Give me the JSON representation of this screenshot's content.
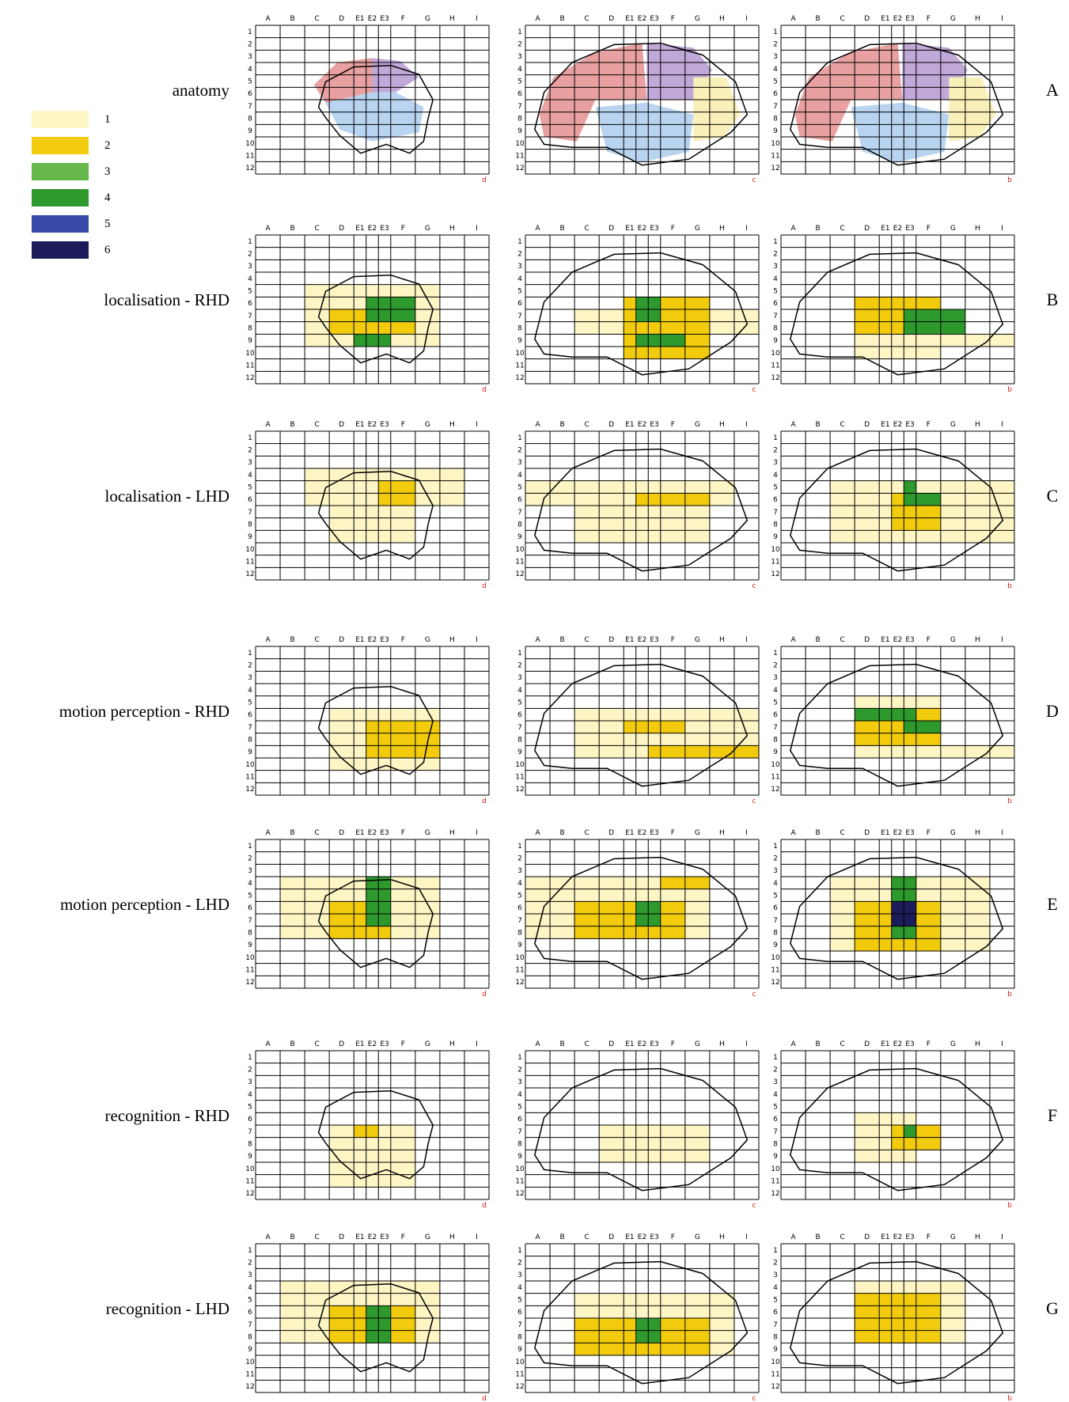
{
  "legend": [
    {
      "label": "1",
      "color": "#fdf5c4"
    },
    {
      "label": "2",
      "color": "#f2cc0c"
    },
    {
      "label": "3",
      "color": "#66b84a"
    },
    {
      "label": "4",
      "color": "#2e9a2e"
    },
    {
      "label": "5",
      "color": "#3a4aa8"
    },
    {
      "label": "6",
      "color": "#1c1c5a"
    }
  ],
  "grid": {
    "columns": [
      "A",
      "B",
      "C",
      "D",
      "E1",
      "E2",
      "E3",
      "F",
      "G",
      "H",
      "I"
    ],
    "rows": [
      "1",
      "2",
      "3",
      "4",
      "5",
      "6",
      "7",
      "8",
      "9",
      "10",
      "11",
      "12"
    ]
  },
  "rows": [
    {
      "label": "anatomy",
      "letter": "A",
      "panels": [
        {
          "corner": "d",
          "cells": []
        },
        {
          "corner": "c",
          "cells": []
        },
        {
          "corner": "b",
          "cells": []
        }
      ]
    },
    {
      "label": "localisation - RHD",
      "letter": "B",
      "panels": [
        {
          "corner": "d",
          "cells": [
            [
              5,
              9,
              2,
              8,
              1
            ],
            [
              7,
              8,
              3,
              7,
              2
            ],
            [
              6,
              7,
              5,
              7,
              4
            ],
            [
              9,
              9,
              4,
              6,
              4
            ]
          ]
        },
        {
          "corner": "c",
          "cells": [
            [
              7,
              8,
              2,
              10,
              1
            ],
            [
              6,
              10,
              4,
              8,
              2
            ],
            [
              6,
              7,
              5,
              6,
              4
            ],
            [
              9,
              9,
              5,
              7,
              4
            ]
          ]
        },
        {
          "corner": "b",
          "cells": [
            [
              6,
              10,
              3,
              7,
              1
            ],
            [
              6,
              8,
              3,
              7,
              2
            ],
            [
              7,
              8,
              6,
              8,
              4
            ],
            [
              9,
              9,
              7,
              10,
              1
            ]
          ]
        }
      ]
    },
    {
      "label": "localisation - LHD",
      "letter": "C",
      "panels": [
        {
          "corner": "d",
          "cells": [
            [
              4,
              6,
              2,
              9,
              1
            ],
            [
              6,
              9,
              3,
              7,
              1
            ],
            [
              5,
              6,
              6,
              7,
              2
            ]
          ]
        },
        {
          "corner": "c",
          "cells": [
            [
              5,
              6,
              0,
              9,
              1
            ],
            [
              6,
              9,
              2,
              8,
              1
            ],
            [
              6,
              6,
              5,
              8,
              2
            ]
          ]
        },
        {
          "corner": "b",
          "cells": [
            [
              5,
              9,
              2,
              10,
              1
            ],
            [
              6,
              8,
              5,
              7,
              2
            ],
            [
              5,
              6,
              6,
              6,
              4
            ],
            [
              6,
              6,
              7,
              7,
              4
            ]
          ]
        }
      ]
    },
    {
      "label": "motion perception - RHD",
      "letter": "D",
      "panels": [
        {
          "corner": "d",
          "cells": [
            [
              6,
              10,
              3,
              8,
              1
            ],
            [
              7,
              9,
              5,
              8,
              2
            ]
          ]
        },
        {
          "corner": "c",
          "cells": [
            [
              6,
              9,
              2,
              10,
              1
            ],
            [
              7,
              7,
              4,
              7,
              2
            ],
            [
              9,
              9,
              6,
              10,
              2
            ]
          ]
        },
        {
          "corner": "b",
          "cells": [
            [
              5,
              9,
              3,
              7,
              1
            ],
            [
              6,
              8,
              3,
              7,
              2
            ],
            [
              6,
              6,
              3,
              6,
              4
            ],
            [
              7,
              7,
              6,
              7,
              4
            ],
            [
              9,
              9,
              7,
              10,
              1
            ]
          ]
        }
      ]
    },
    {
      "label": "motion perception - LHD",
      "letter": "E",
      "panels": [
        {
          "corner": "d",
          "cells": [
            [
              4,
              8,
              1,
              8,
              1
            ],
            [
              6,
              8,
              3,
              6,
              2
            ],
            [
              4,
              7,
              5,
              6,
              4
            ],
            [
              6,
              6,
              6,
              6,
              4
            ]
          ]
        },
        {
          "corner": "c",
          "cells": [
            [
              4,
              8,
              0,
              8,
              1
            ],
            [
              6,
              8,
              2,
              7,
              2
            ],
            [
              6,
              7,
              5,
              6,
              4
            ],
            [
              4,
              4,
              7,
              8,
              2
            ]
          ]
        },
        {
          "corner": "b",
          "cells": [
            [
              4,
              9,
              2,
              9,
              1
            ],
            [
              6,
              9,
              3,
              7,
              2
            ],
            [
              4,
              8,
              5,
              6,
              4
            ],
            [
              6,
              7,
              5,
              6,
              6
            ],
            [
              8,
              8,
              5,
              6,
              4
            ]
          ]
        }
      ]
    },
    {
      "label": "recognition - RHD",
      "letter": "F",
      "panels": [
        {
          "corner": "d",
          "cells": [
            [
              7,
              11,
              3,
              7,
              1
            ],
            [
              7,
              7,
              4,
              5,
              2
            ]
          ]
        },
        {
          "corner": "c",
          "cells": [
            [
              7,
              9,
              3,
              8,
              1
            ]
          ]
        },
        {
          "corner": "b",
          "cells": [
            [
              6,
              9,
              3,
              6,
              1
            ],
            [
              7,
              8,
              5,
              7,
              2
            ],
            [
              7,
              7,
              6,
              6,
              4
            ]
          ]
        }
      ]
    },
    {
      "label": "recognition - LHD",
      "letter": "G",
      "panels": [
        {
          "corner": "d",
          "cells": [
            [
              4,
              8,
              1,
              8,
              1
            ],
            [
              6,
              8,
              3,
              7,
              2
            ],
            [
              6,
              8,
              5,
              6,
              4
            ]
          ]
        },
        {
          "corner": "c",
          "cells": [
            [
              5,
              9,
              2,
              9,
              1
            ],
            [
              7,
              9,
              2,
              8,
              2
            ],
            [
              7,
              8,
              5,
              6,
              4
            ]
          ]
        },
        {
          "corner": "b",
          "cells": [
            [
              4,
              8,
              3,
              8,
              1
            ],
            [
              5,
              8,
              3,
              7,
              2
            ]
          ]
        }
      ]
    }
  ]
}
